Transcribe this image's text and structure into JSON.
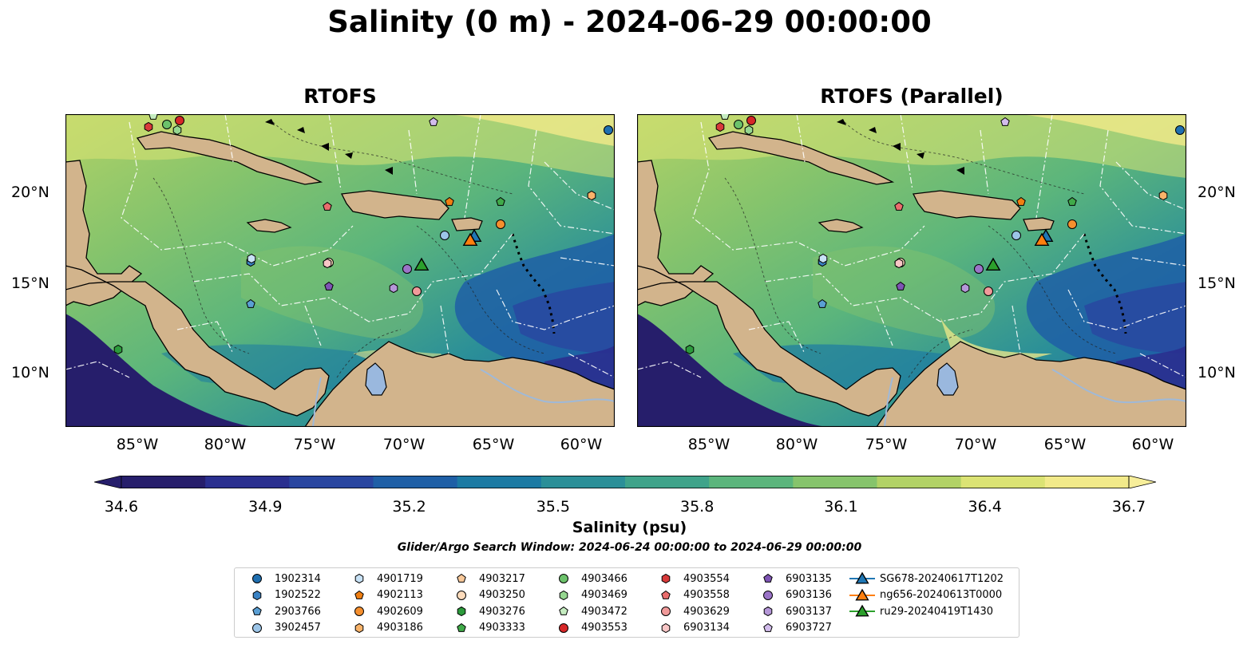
{
  "figure": {
    "suptitle": "Salinity (0 m) - 2024-06-29 00:00:00",
    "panels": [
      {
        "title": "RTOFS"
      },
      {
        "title": "RTOFS (Parallel)"
      }
    ],
    "lat_ticks": [
      "20°N",
      "15°N",
      "10°N"
    ],
    "lon_ticks": [
      "85°W",
      "80°W",
      "75°W",
      "70°W",
      "65°W",
      "60°W"
    ],
    "colorbar": {
      "label": "Salinity (psu)",
      "min": 34.6,
      "max": 36.7,
      "ticks": [
        "34.6",
        "34.9",
        "35.2",
        "35.5",
        "35.8",
        "36.1",
        "36.4",
        "36.7"
      ],
      "colors": [
        "#261e6b",
        "#2a2f8f",
        "#2946a0",
        "#1f5fa6",
        "#1c7aa3",
        "#2b8f98",
        "#3fa38a",
        "#5bb57c",
        "#86c46c",
        "#b2d266",
        "#dbe374",
        "#f2ea8a"
      ]
    },
    "search_window": "Glider/Argo Search Window: 2024-06-24 00:00:00 to 2024-06-29 00:00:00",
    "colors": {
      "land": "#d2b48c",
      "lake": "#9ab8de",
      "river": "#9fb9d8"
    }
  },
  "legend": {
    "items": [
      {
        "label": "1902314",
        "marker": "circle",
        "color": "#1f6fb0"
      },
      {
        "label": "1902522",
        "marker": "hexagon",
        "color": "#3a82c4"
      },
      {
        "label": "2903766",
        "marker": "pentagon",
        "color": "#5a9fd4"
      },
      {
        "label": "3902457",
        "marker": "circle",
        "color": "#9cc5e8"
      },
      {
        "label": "4901719",
        "marker": "hexagon",
        "color": "#c8e2f6"
      },
      {
        "label": "4902113",
        "marker": "pentagon",
        "color": "#f07f12"
      },
      {
        "label": "4902609",
        "marker": "circle",
        "color": "#f58f2e"
      },
      {
        "label": "4903186",
        "marker": "hexagon",
        "color": "#f8b36a"
      },
      {
        "label": "4903217",
        "marker": "pentagon",
        "color": "#f9c99a"
      },
      {
        "label": "4903250",
        "marker": "circle",
        "color": "#fddcbc"
      },
      {
        "label": "4903276",
        "marker": "hexagon",
        "color": "#2c9b3c"
      },
      {
        "label": "4903333",
        "marker": "pentagon",
        "color": "#40aa49"
      },
      {
        "label": "4903466",
        "marker": "circle",
        "color": "#6cc26b"
      },
      {
        "label": "4903469",
        "marker": "hexagon",
        "color": "#96d790"
      },
      {
        "label": "4903472",
        "marker": "pentagon",
        "color": "#c5ecc0"
      },
      {
        "label": "4903553",
        "marker": "circle",
        "color": "#d62728"
      },
      {
        "label": "4903554",
        "marker": "hexagon",
        "color": "#d83a3a"
      },
      {
        "label": "4903558",
        "marker": "pentagon",
        "color": "#ea6d6d"
      },
      {
        "label": "4903629",
        "marker": "circle",
        "color": "#f19a9a"
      },
      {
        "label": "6903134",
        "marker": "hexagon",
        "color": "#f8c6c6"
      },
      {
        "label": "6903135",
        "marker": "pentagon",
        "color": "#7e54b4"
      },
      {
        "label": "6903136",
        "marker": "circle",
        "color": "#9b74c8"
      },
      {
        "label": "6903137",
        "marker": "hexagon",
        "color": "#b597d8"
      },
      {
        "label": "6903727",
        "marker": "pentagon",
        "color": "#d2bcec"
      },
      {
        "label": "SG678-20240617T1202",
        "marker": "triangle",
        "color": "#1f77b4"
      },
      {
        "label": "ng656-20240613T0000",
        "marker": "triangle",
        "color": "#ff7f0e"
      },
      {
        "label": "ru29-20240419T1430",
        "marker": "triangle",
        "color": "#2ca02c"
      }
    ]
  }
}
